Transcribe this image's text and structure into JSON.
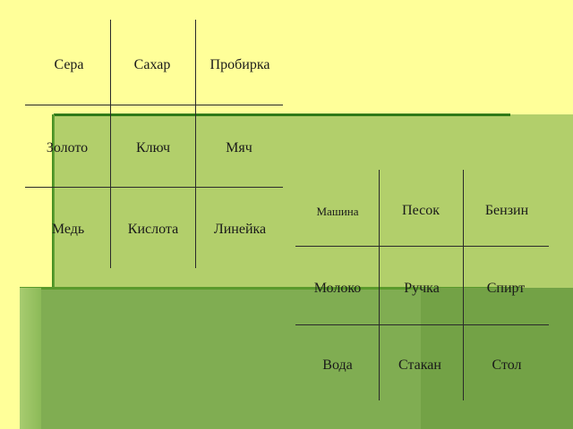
{
  "grid_left": {
    "rows": [
      [
        "Сера",
        "Сахар",
        "Пробирка"
      ],
      [
        "Золото",
        "Ключ",
        "Мяч"
      ],
      [
        "Медь",
        "Кислота",
        "Линейка"
      ]
    ]
  },
  "grid_right": {
    "rows": [
      [
        "Машина",
        "Песок",
        "Бензин"
      ],
      [
        "Молоко",
        "Ручка",
        "Спирт"
      ],
      [
        "Вода",
        "Стакан",
        "Стол"
      ]
    ]
  }
}
